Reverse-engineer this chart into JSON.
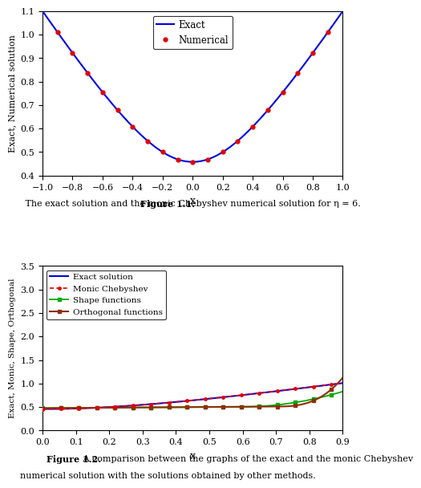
{
  "fig1": {
    "xlabel": "x",
    "ylabel": "Exact, Numerical solution",
    "xlim": [
      -1,
      1
    ],
    "ylim": [
      0.4,
      1.1
    ],
    "yticks": [
      0.4,
      0.5,
      0.6,
      0.7,
      0.8,
      0.9,
      1.0,
      1.1
    ],
    "xticks": [
      -1,
      -0.8,
      -0.6,
      -0.4,
      -0.2,
      0,
      0.2,
      0.4,
      0.6,
      0.8,
      1
    ],
    "exact_color": "#0000dd",
    "numerical_color": "#dd0000",
    "caption_bold": "Figure 1.1.",
    "caption_normal": " The exact solution and the monic Chebyshev numerical solution for η = 6."
  },
  "fig2": {
    "xlabel": "x",
    "ylabel": "Exact, Monic, Shape, Orthogonal",
    "xlim": [
      0,
      0.9
    ],
    "ylim": [
      0,
      3.5
    ],
    "yticks": [
      0,
      0.5,
      1.0,
      1.5,
      2.0,
      2.5,
      3.0,
      3.5
    ],
    "xticks": [
      0,
      0.1,
      0.2,
      0.3,
      0.4,
      0.5,
      0.6,
      0.7,
      0.8,
      0.9
    ],
    "exact_color": "#0000dd",
    "monic_color": "#dd0000",
    "shape_color": "#00aa00",
    "ortho_color": "#8B3000",
    "caption_bold": "Figure 1.2.",
    "caption_line1": " A comparison between the graphs of the exact and the monic Chebyshev",
    "caption_line2": "numerical solution with the solutions obtained by other methods."
  }
}
